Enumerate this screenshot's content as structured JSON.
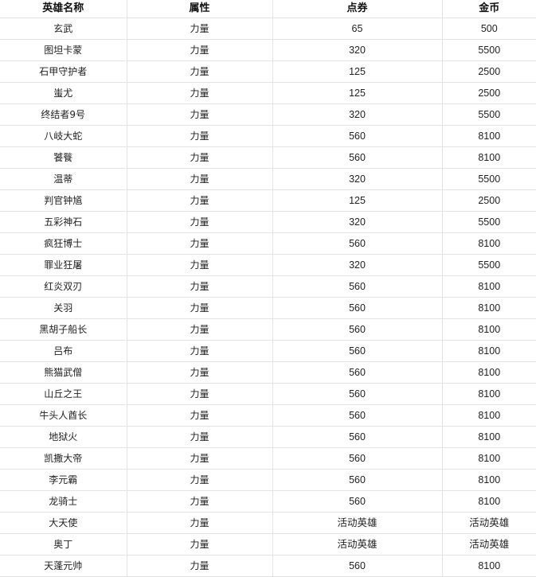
{
  "table": {
    "headers": [
      "英雄名称",
      "属性",
      "点券",
      "金币"
    ],
    "rows": [
      [
        "玄武",
        "力量",
        "65",
        "500"
      ],
      [
        "图坦卡蒙",
        "力量",
        "320",
        "5500"
      ],
      [
        "石甲守护者",
        "力量",
        "125",
        "2500"
      ],
      [
        "蚩尤",
        "力量",
        "125",
        "2500"
      ],
      [
        "终结者9号",
        "力量",
        "320",
        "5500"
      ],
      [
        "八岐大蛇",
        "力量",
        "560",
        "8100"
      ],
      [
        "饕餮",
        "力量",
        "560",
        "8100"
      ],
      [
        "温蒂",
        "力量",
        "320",
        "5500"
      ],
      [
        "判官钟馗",
        "力量",
        "125",
        "2500"
      ],
      [
        "五彩神石",
        "力量",
        "320",
        "5500"
      ],
      [
        "疯狂博士",
        "力量",
        "560",
        "8100"
      ],
      [
        "罪业狂屠",
        "力量",
        "320",
        "5500"
      ],
      [
        "红炎双刃",
        "力量",
        "560",
        "8100"
      ],
      [
        "关羽",
        "力量",
        "560",
        "8100"
      ],
      [
        "黑胡子船长",
        "力量",
        "560",
        "8100"
      ],
      [
        "吕布",
        "力量",
        "560",
        "8100"
      ],
      [
        "熊猫武僧",
        "力量",
        "560",
        "8100"
      ],
      [
        "山丘之王",
        "力量",
        "560",
        "8100"
      ],
      [
        "牛头人酋长",
        "力量",
        "560",
        "8100"
      ],
      [
        "地狱火",
        "力量",
        "560",
        "8100"
      ],
      [
        "凯撒大帝",
        "力量",
        "560",
        "8100"
      ],
      [
        "李元霸",
        "力量",
        "560",
        "8100"
      ],
      [
        "龙骑士",
        "力量",
        "560",
        "8100"
      ],
      [
        "大天使",
        "力量",
        "活动英雄",
        "活动英雄"
      ],
      [
        "奥丁",
        "力量",
        "活动英雄",
        "活动英雄"
      ],
      [
        "天蓬元帅",
        "力量",
        "560",
        "8100"
      ]
    ]
  }
}
